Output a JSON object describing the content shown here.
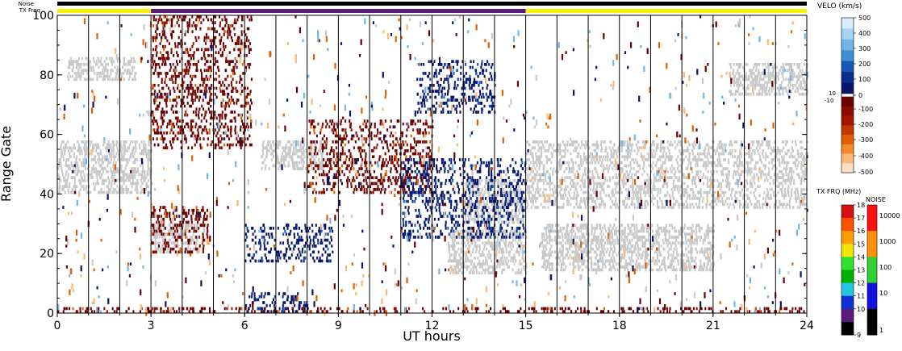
{
  "chart_data": {
    "type": "heatmap",
    "xlabel": "UT hours",
    "ylabel": "Range Gate",
    "xlim": [
      0,
      24
    ],
    "ylim": [
      0,
      100
    ],
    "xticks": [
      0,
      3,
      6,
      9,
      12,
      15,
      18,
      21,
      24
    ],
    "yticks": [
      0,
      20,
      40,
      60,
      80,
      100
    ],
    "hour_gridlines": true,
    "header_labels": {
      "noise": "Noise",
      "txfreq": "TX Freq"
    },
    "header_bar": {
      "noise_color": "#000000",
      "txfreq_segments": [
        {
          "start": 0,
          "end": 3,
          "freq_mhz": 15,
          "color": "#f4f400"
        },
        {
          "start": 3,
          "end": 15,
          "freq_mhz": 10,
          "color": "#5a1a7a"
        },
        {
          "start": 15,
          "end": 24,
          "freq_mhz": 15,
          "color": "#f4f400"
        }
      ]
    },
    "velocity_scale": {
      "title": "VELO (km/s)",
      "ticks": [
        "500",
        "400",
        "300",
        "200",
        "100",
        "0",
        "-100",
        "-200",
        "-300",
        "-400",
        "-500"
      ],
      "ground_scatter_labels": [
        "10",
        "-10"
      ],
      "colors_positive": [
        "#d9ecff",
        "#a6d4f5",
        "#73b5e6",
        "#3f8fd2",
        "#1657b8",
        "#0a2e8f",
        "#06156a"
      ],
      "colors_negative": [
        "#6b0000",
        "#8c0a00",
        "#a31500",
        "#c23600",
        "#e06000",
        "#f58a2a",
        "#fbb776",
        "#fde0c0"
      ],
      "ground_scatter_color": "#c8c8c8"
    },
    "txfreq_scale": {
      "title": "TX FRQ (MHz)",
      "ticks": [
        "18",
        "17",
        "16",
        "15",
        "14",
        "13",
        "12",
        "11",
        "10",
        "9"
      ],
      "colors": [
        "#d81010",
        "#ff5000",
        "#ff9c00",
        "#f4e400",
        "#2fe02f",
        "#00b000",
        "#1fc8e0",
        "#1030d8",
        "#5a1a7a",
        "#000000"
      ]
    },
    "noise_scale": {
      "title": "NOISE",
      "ticks": [
        "10000",
        "1000",
        "100",
        "10",
        "1"
      ],
      "colors": [
        "#ff1010",
        "#ff9000",
        "#30d030",
        "#1010e0",
        "#000000"
      ]
    },
    "features": [
      {
        "kind": "ground_scatter",
        "t": [
          0,
          3
        ],
        "gate": [
          40,
          58
        ]
      },
      {
        "kind": "ground_scatter",
        "t": [
          0.3,
          2.5
        ],
        "gate": [
          78,
          86
        ]
      },
      {
        "kind": "ground_scatter",
        "t": [
          3,
          4.5
        ],
        "gate": [
          20,
          30
        ]
      },
      {
        "kind": "ground_scatter",
        "t": [
          6.5,
          8.5
        ],
        "gate": [
          48,
          58
        ]
      },
      {
        "kind": "ground_scatter",
        "t": [
          12.5,
          15
        ],
        "gate": [
          13,
          28
        ]
      },
      {
        "kind": "ground_scatter",
        "t": [
          13,
          15
        ],
        "gate": [
          30,
          45
        ]
      },
      {
        "kind": "ground_scatter",
        "t": [
          15,
          24
        ],
        "gate": [
          35,
          58
        ]
      },
      {
        "kind": "ground_scatter",
        "t": [
          15.5,
          21
        ],
        "gate": [
          14,
          30
        ]
      },
      {
        "kind": "ground_scatter",
        "t": [
          21.5,
          24
        ],
        "gate": [
          73,
          84
        ]
      },
      {
        "kind": "negative_velocity",
        "t": [
          3,
          4.8
        ],
        "gate": [
          20,
          36
        ]
      },
      {
        "kind": "negative_velocity",
        "t": [
          3,
          6.2
        ],
        "gate": [
          55,
          100
        ]
      },
      {
        "kind": "negative_velocity",
        "t": [
          0,
          24
        ],
        "gate": [
          0,
          2
        ]
      },
      {
        "kind": "negative_velocity",
        "t": [
          8,
          12
        ],
        "gate": [
          40,
          65
        ]
      },
      {
        "kind": "positive_velocity",
        "t": [
          6,
          8.8
        ],
        "gate": [
          17,
          30
        ]
      },
      {
        "kind": "positive_velocity",
        "t": [
          6,
          8
        ],
        "gate": [
          0,
          7
        ]
      },
      {
        "kind": "positive_velocity",
        "t": [
          11.5,
          14
        ],
        "gate": [
          67,
          85
        ]
      },
      {
        "kind": "positive_velocity",
        "t": [
          11,
          15
        ],
        "gate": [
          25,
          52
        ]
      }
    ]
  }
}
